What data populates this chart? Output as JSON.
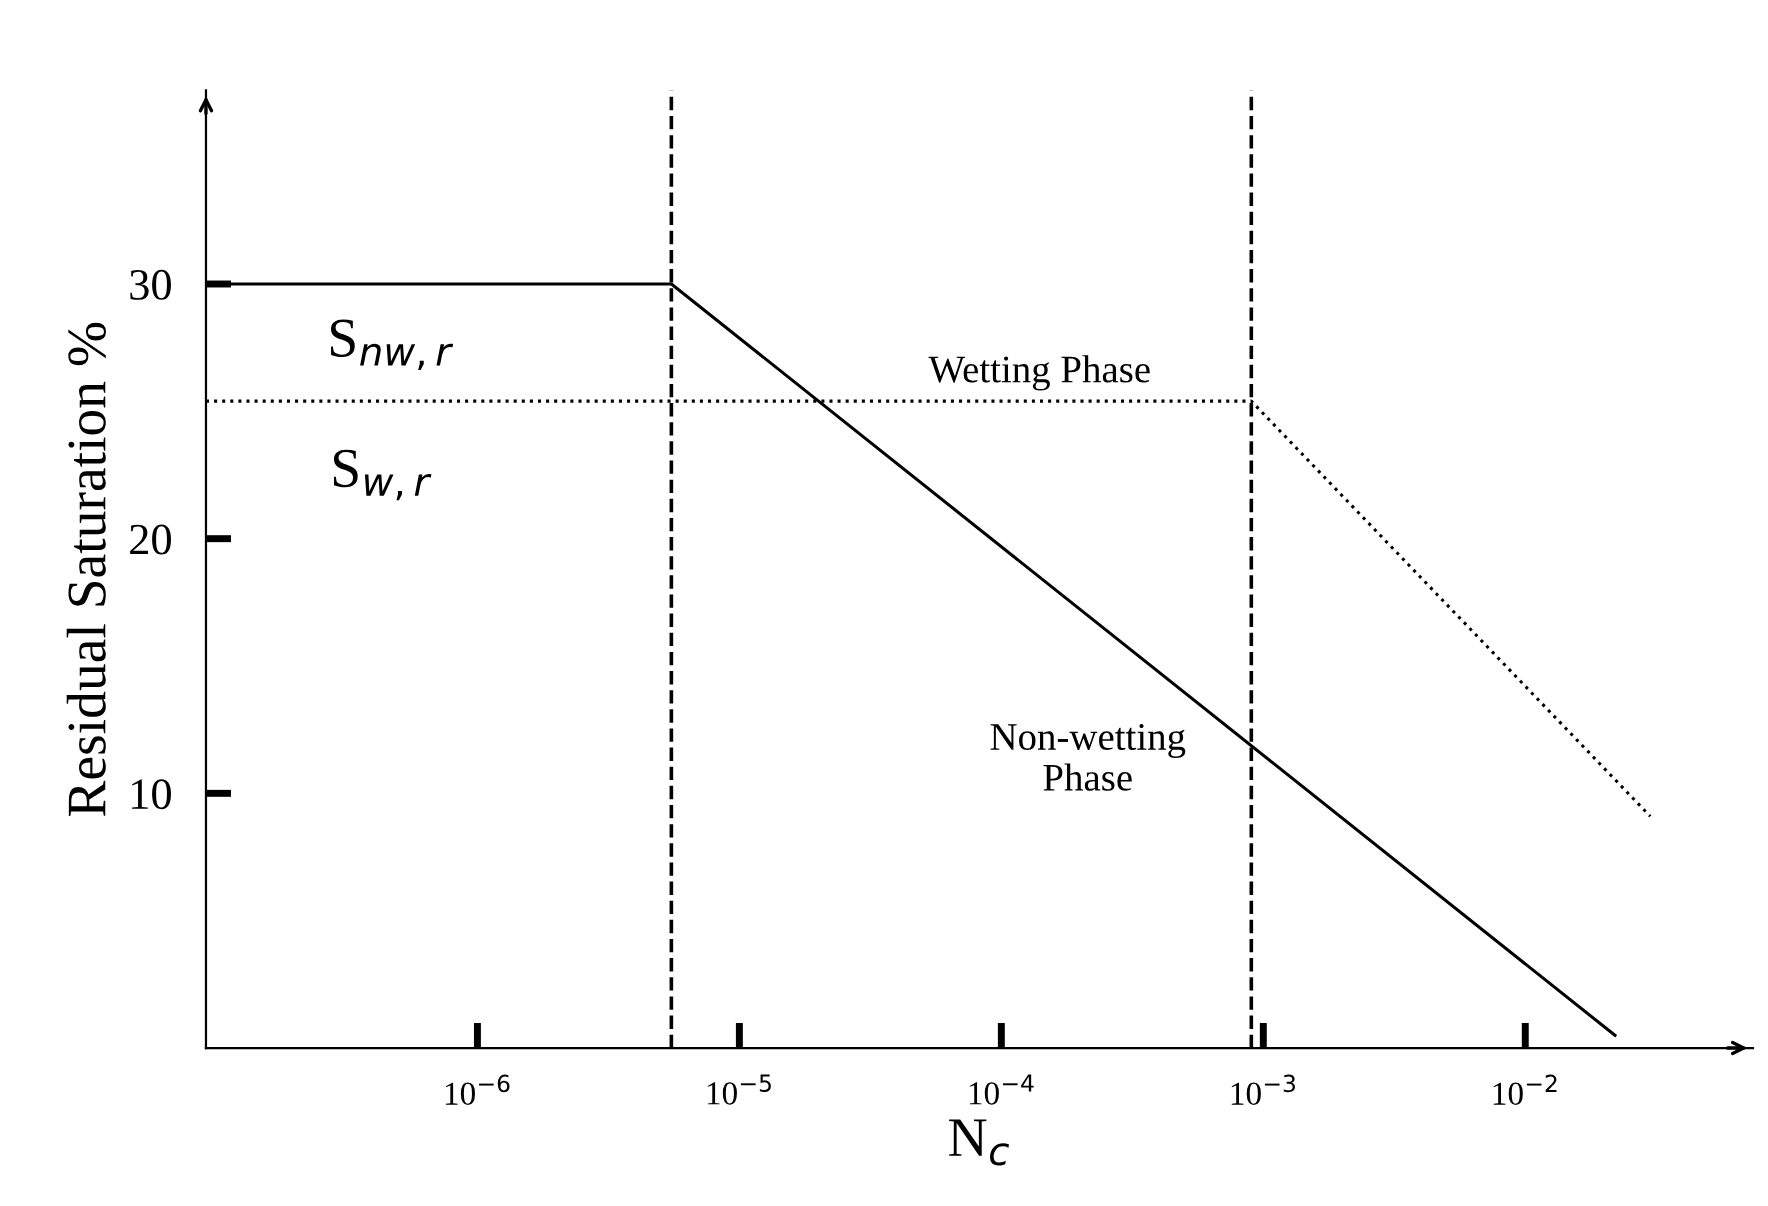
{
  "chart_data": {
    "type": "line",
    "xlabel": "N$_{c}$",
    "ylabel": "Residual Saturation %",
    "log": "x",
    "xlim": [
      9.2e-08,
      0.074
    ],
    "ylim": [
      0,
      37.6
    ],
    "xticks": [
      {
        "value": 1e-06,
        "label": "10$^{−6}$"
      },
      {
        "value": 1e-05,
        "label": "10$^{−5}$"
      },
      {
        "value": 0.0001,
        "label": "10$^{−4}$"
      },
      {
        "value": 0.001,
        "label": "10$^{−3}$"
      },
      {
        "value": 0.01,
        "label": "10$^{−2}$"
      }
    ],
    "yticks": [
      10,
      20,
      30
    ],
    "grid": false,
    "legend": false,
    "marker": "none",
    "series": [
      {
        "x": [
          9.2e-08,
          5.5e-06,
          0.022
        ],
        "values": [
          30,
          30,
          0.5
        ],
        "color": "#000000",
        "line_style": "solid"
      },
      {
        "x": [
          9.2e-08,
          0.0009,
          0.03
        ],
        "values": [
          25.4,
          25.4,
          9.1
        ],
        "color": "#000000",
        "line_style": "dotted"
      }
    ],
    "ref_lines": [
      {
        "axis": "x",
        "value": 5.5e-06,
        "color": "#000000",
        "line_style": "dashed"
      },
      {
        "axis": "x",
        "value": 0.0009,
        "color": "#000000",
        "line_style": "dashed"
      }
    ],
    "annotations": [
      "S$_{nw,r}$",
      "S$_{w,r}$",
      "Wetting Phase",
      "Non-wetting\nPhase"
    ]
  }
}
